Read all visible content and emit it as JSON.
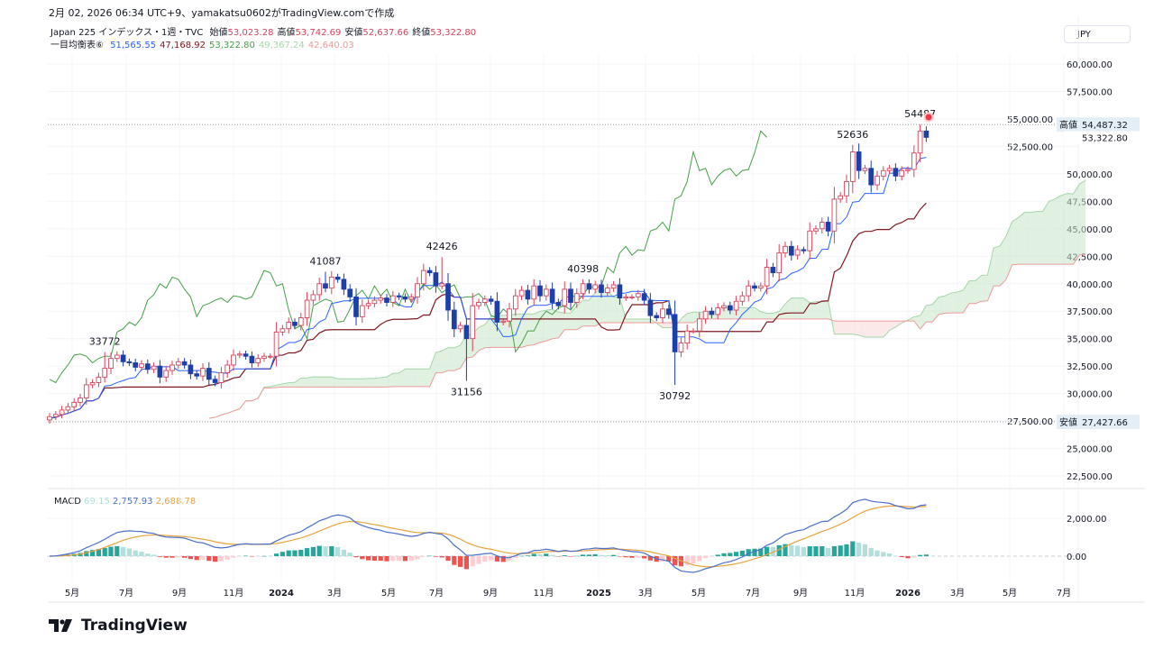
{
  "header": {
    "created": "2月 02, 2026 06:34 UTC+9、yamakatsu0602がTradingView.comで作成",
    "symbol": "Japan 225 インデックス・1週・TVC",
    "ohlc": [
      {
        "label": "始値",
        "value": "53,023.28"
      },
      {
        "label": "高値",
        "value": "53,742.69"
      },
      {
        "label": "安値",
        "value": "52,637.66"
      },
      {
        "label": "終値",
        "value": "53,322.80"
      }
    ],
    "ichimoku_label": "一目均衡表⑥",
    "ichimoku_values": [
      {
        "value": "51,565.55",
        "color": "#2962ff"
      },
      {
        "value": "47,168.92",
        "color": "#801922"
      },
      {
        "value": "53,322.80",
        "color": "#43a047"
      },
      {
        "value": "49,367.24",
        "color": "#a5d6a7"
      },
      {
        "value": "42,640.03",
        "color": "#ef9a9a"
      }
    ],
    "currency": "JPY"
  },
  "macd_header": {
    "label": "MACD",
    "hist": "69.15",
    "macd": "2,757.93",
    "signal": "2,688.78"
  },
  "price_markers": [
    {
      "label": "高値",
      "value": "54,487.32",
      "price": 54487.32
    },
    {
      "label": "",
      "value": "53,322.80",
      "price": 53322.8
    },
    {
      "label": "安値",
      "value": "27,427.66",
      "price": 27427.66
    }
  ],
  "logo": "TradingView",
  "colors": {
    "up": "#d5445a",
    "down": "#1d3fa8",
    "tenkan": "#2962ff",
    "kijun": "#801922",
    "chikou": "#43a047",
    "cloud_bull": "#a5d6a7",
    "cloud_bear": "#ef9a9a",
    "macd": "#4a6fc9",
    "signal": "#e8a33c",
    "hist_up_strong": "#26a69a",
    "hist_up_weak": "#b2dfdb",
    "hist_dn_strong": "#ef5350",
    "hist_dn_weak": "#ffcdd2"
  },
  "chart_data": {
    "type": "candlestick",
    "title": "Japan 225 インデックス・1週・TVC",
    "interval": "weekly",
    "ylim": [
      21000,
      61500
    ],
    "y_ticks": [
      "60,000.00",
      "57,500.00",
      "55,000.00",
      "52,500.00",
      "50,000.00",
      "47,500.00",
      "45,000.00",
      "42,500.00",
      "40,000.00",
      "37,500.00",
      "35,000.00",
      "32,500.00",
      "30,000.00",
      "27,500.00",
      "25,000.00",
      "22,500.00"
    ],
    "y_tick_values": [
      60000,
      57500,
      55000,
      52500,
      50000,
      47500,
      45000,
      42500,
      40000,
      37500,
      35000,
      32500,
      30000,
      27500,
      25000,
      22500
    ],
    "x_ticks": [
      "5月",
      "7月",
      "9月",
      "11月",
      "2024",
      "3月",
      "5月",
      "7月",
      "9月",
      "11月",
      "2025",
      "3月",
      "5月",
      "7月",
      "9月",
      "11月",
      "2026",
      "3月",
      "5月",
      "7月"
    ],
    "close": [
      27900,
      28100,
      28500,
      28800,
      29200,
      29600,
      30800,
      31000,
      31500,
      32300,
      33200,
      33500,
      32900,
      32800,
      32400,
      32700,
      32200,
      32500,
      31500,
      32100,
      32600,
      32900,
      32600,
      31800,
      31600,
      32300,
      31300,
      31000,
      31900,
      32600,
      33500,
      33600,
      33400,
      32800,
      33200,
      33400,
      33400,
      35600,
      35900,
      36500,
      36200,
      36900,
      38500,
      39000,
      40000,
      39600,
      40600,
      40400,
      39500,
      38800,
      37000,
      38000,
      38200,
      38500,
      38700,
      38300,
      38900,
      38800,
      38600,
      38800,
      40000,
      41200,
      41000,
      39800,
      40000,
      37600,
      35900,
      36200,
      35000,
      38000,
      38300,
      38600,
      38400,
      36500,
      36600,
      37700,
      38900,
      39400,
      38600,
      39800,
      38900,
      39500,
      38300,
      38000,
      39500,
      38300,
      39100,
      40000,
      39500,
      39900,
      39200,
      39600,
      39900,
      38700,
      38800,
      38800,
      39100,
      38500,
      37100,
      36900,
      37700,
      37200,
      33800,
      34600,
      35700,
      35700,
      36800,
      37500,
      37200,
      37800,
      38000,
      37600,
      38400,
      38900,
      39800,
      39600,
      39800,
      41500,
      41000,
      42800,
      43400,
      42600,
      43100,
      43000,
      44800,
      45000,
      45600,
      44800,
      47700,
      48000,
      49300,
      52000,
      50300,
      50500,
      49000,
      49800,
      50300,
      50500,
      49800,
      50300,
      50400,
      51900,
      53900,
      53322.8
    ],
    "annotations": [
      {
        "bar": 9,
        "type": "high",
        "value": 33772,
        "text": "33772"
      },
      {
        "bar": 45,
        "type": "high",
        "value": 41087,
        "text": "41087"
      },
      {
        "bar": 64,
        "type": "high",
        "value": 42426,
        "text": "42426"
      },
      {
        "bar": 68,
        "type": "low",
        "value": 31156,
        "text": "31156"
      },
      {
        "bar": 87,
        "type": "high",
        "value": 40398,
        "text": "40398"
      },
      {
        "bar": 102,
        "type": "low",
        "value": 30792,
        "text": "30792"
      },
      {
        "bar": 131,
        "type": "high",
        "value": 52636,
        "text": "52636"
      },
      {
        "bar": 142,
        "type": "high",
        "value": 54487,
        "text": "54487"
      }
    ],
    "indicators": [
      "Ichimoku (9,26,52)",
      "MACD (12,26,9)"
    ],
    "macd_ticks": [
      "2,000.00",
      "0.00"
    ],
    "macd_tick_values": [
      2000,
      0
    ],
    "grid": true
  }
}
